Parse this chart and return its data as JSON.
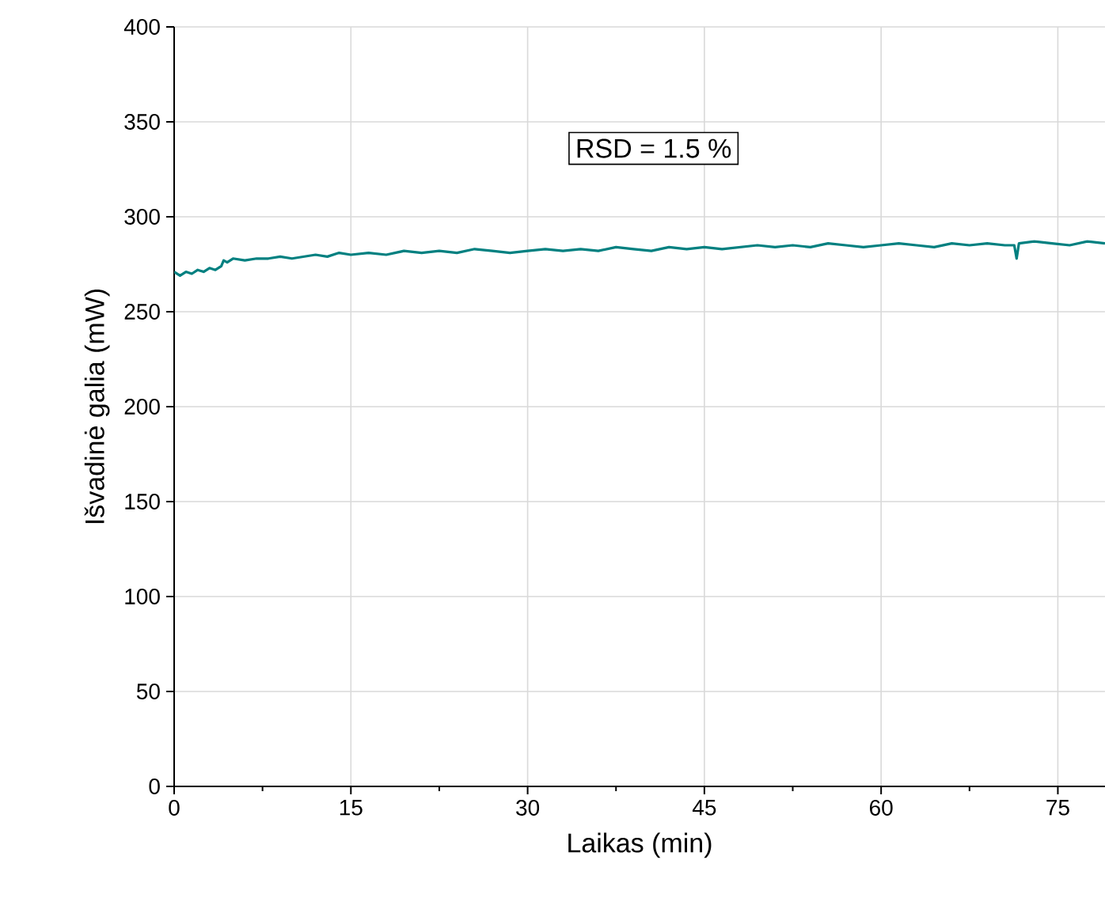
{
  "chart_data": {
    "type": "line",
    "xlabel": "Laikas (min)",
    "ylabel": "Išvadinė galia (mW)",
    "annotations": [
      "RSD = 1.5 %"
    ],
    "xlim": [
      0,
      79
    ],
    "xticks": [
      0,
      15,
      30,
      45,
      60,
      75
    ],
    "ylim": [
      0,
      400
    ],
    "yticks": [
      0,
      50,
      100,
      150,
      200,
      250,
      300,
      350,
      400
    ],
    "grid": true,
    "series": [
      {
        "color": "#008080",
        "x": [
          0,
          0.5,
          1,
          1.5,
          2,
          2.5,
          3,
          3.5,
          4,
          4.2,
          4.5,
          5,
          6,
          7,
          8,
          9,
          10,
          11,
          12,
          13,
          14,
          15,
          16.5,
          18,
          19.5,
          21,
          22.5,
          24,
          25.5,
          27,
          28.5,
          30,
          31.5,
          33,
          34.5,
          36,
          37.5,
          39,
          40.5,
          42,
          43.5,
          45,
          46.5,
          48,
          49.5,
          51,
          52.5,
          54,
          55.5,
          57,
          58.5,
          60,
          61.5,
          63,
          64.5,
          66,
          67.5,
          69,
          70.5,
          71.3,
          71.5,
          71.7,
          73,
          74.5,
          76,
          77.5,
          79
        ],
        "values": [
          271,
          269,
          271,
          270,
          272,
          271,
          273,
          272,
          274,
          277,
          276,
          278,
          277,
          278,
          278,
          279,
          278,
          279,
          280,
          279,
          281,
          280,
          281,
          280,
          282,
          281,
          282,
          281,
          283,
          282,
          281,
          282,
          283,
          282,
          283,
          282,
          284,
          283,
          282,
          284,
          283,
          284,
          283,
          284,
          285,
          284,
          285,
          284,
          286,
          285,
          284,
          285,
          286,
          285,
          284,
          286,
          285,
          286,
          285,
          285,
          278,
          286,
          287,
          286,
          285,
          287,
          286
        ]
      }
    ]
  }
}
